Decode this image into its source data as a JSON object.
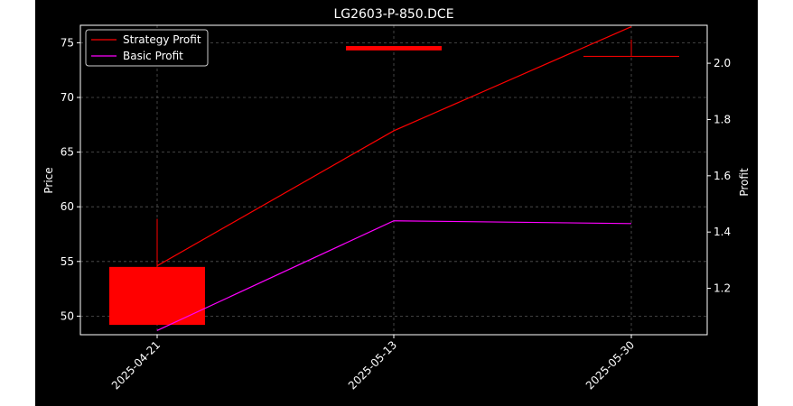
{
  "chart_data": {
    "type": "candlestick+line",
    "title": "LG2603-P-850.DCE",
    "xlabel": "",
    "ylabel_left": "Price",
    "ylabel_right": "Profit",
    "dates": [
      "2025-04-21",
      "2025-05-13",
      "2025-05-30"
    ],
    "left_ylim": [
      48.3,
      76.6
    ],
    "left_yticks": [
      "50",
      "55",
      "60",
      "65",
      "70",
      "75"
    ],
    "right_ylim": [
      1.035,
      2.135
    ],
    "right_yticks": [
      "1.2",
      "1.4",
      "1.6",
      "1.8",
      "2.0"
    ],
    "grid": true,
    "legend_position": "top-left",
    "candles": [
      {
        "date": "2025-04-21",
        "open": 49.2,
        "close": 54.5,
        "high": 58.9,
        "low": 49.2
      },
      {
        "date": "2025-05-13",
        "open": 74.3,
        "close": 74.7,
        "high": 74.7,
        "low": 74.3
      },
      {
        "date": "2025-05-30",
        "open": 73.8,
        "close": 73.8,
        "high": 75.3,
        "low": 73.8
      }
    ],
    "series": [
      {
        "name": "Strategy Profit",
        "color": "#ff0000",
        "values": [
          1.28,
          1.76,
          2.13
        ]
      },
      {
        "name": "Basic Profit",
        "color": "#ff00ff",
        "values": [
          1.05,
          1.44,
          1.43
        ]
      }
    ],
    "candle_color": "#ff0000"
  }
}
